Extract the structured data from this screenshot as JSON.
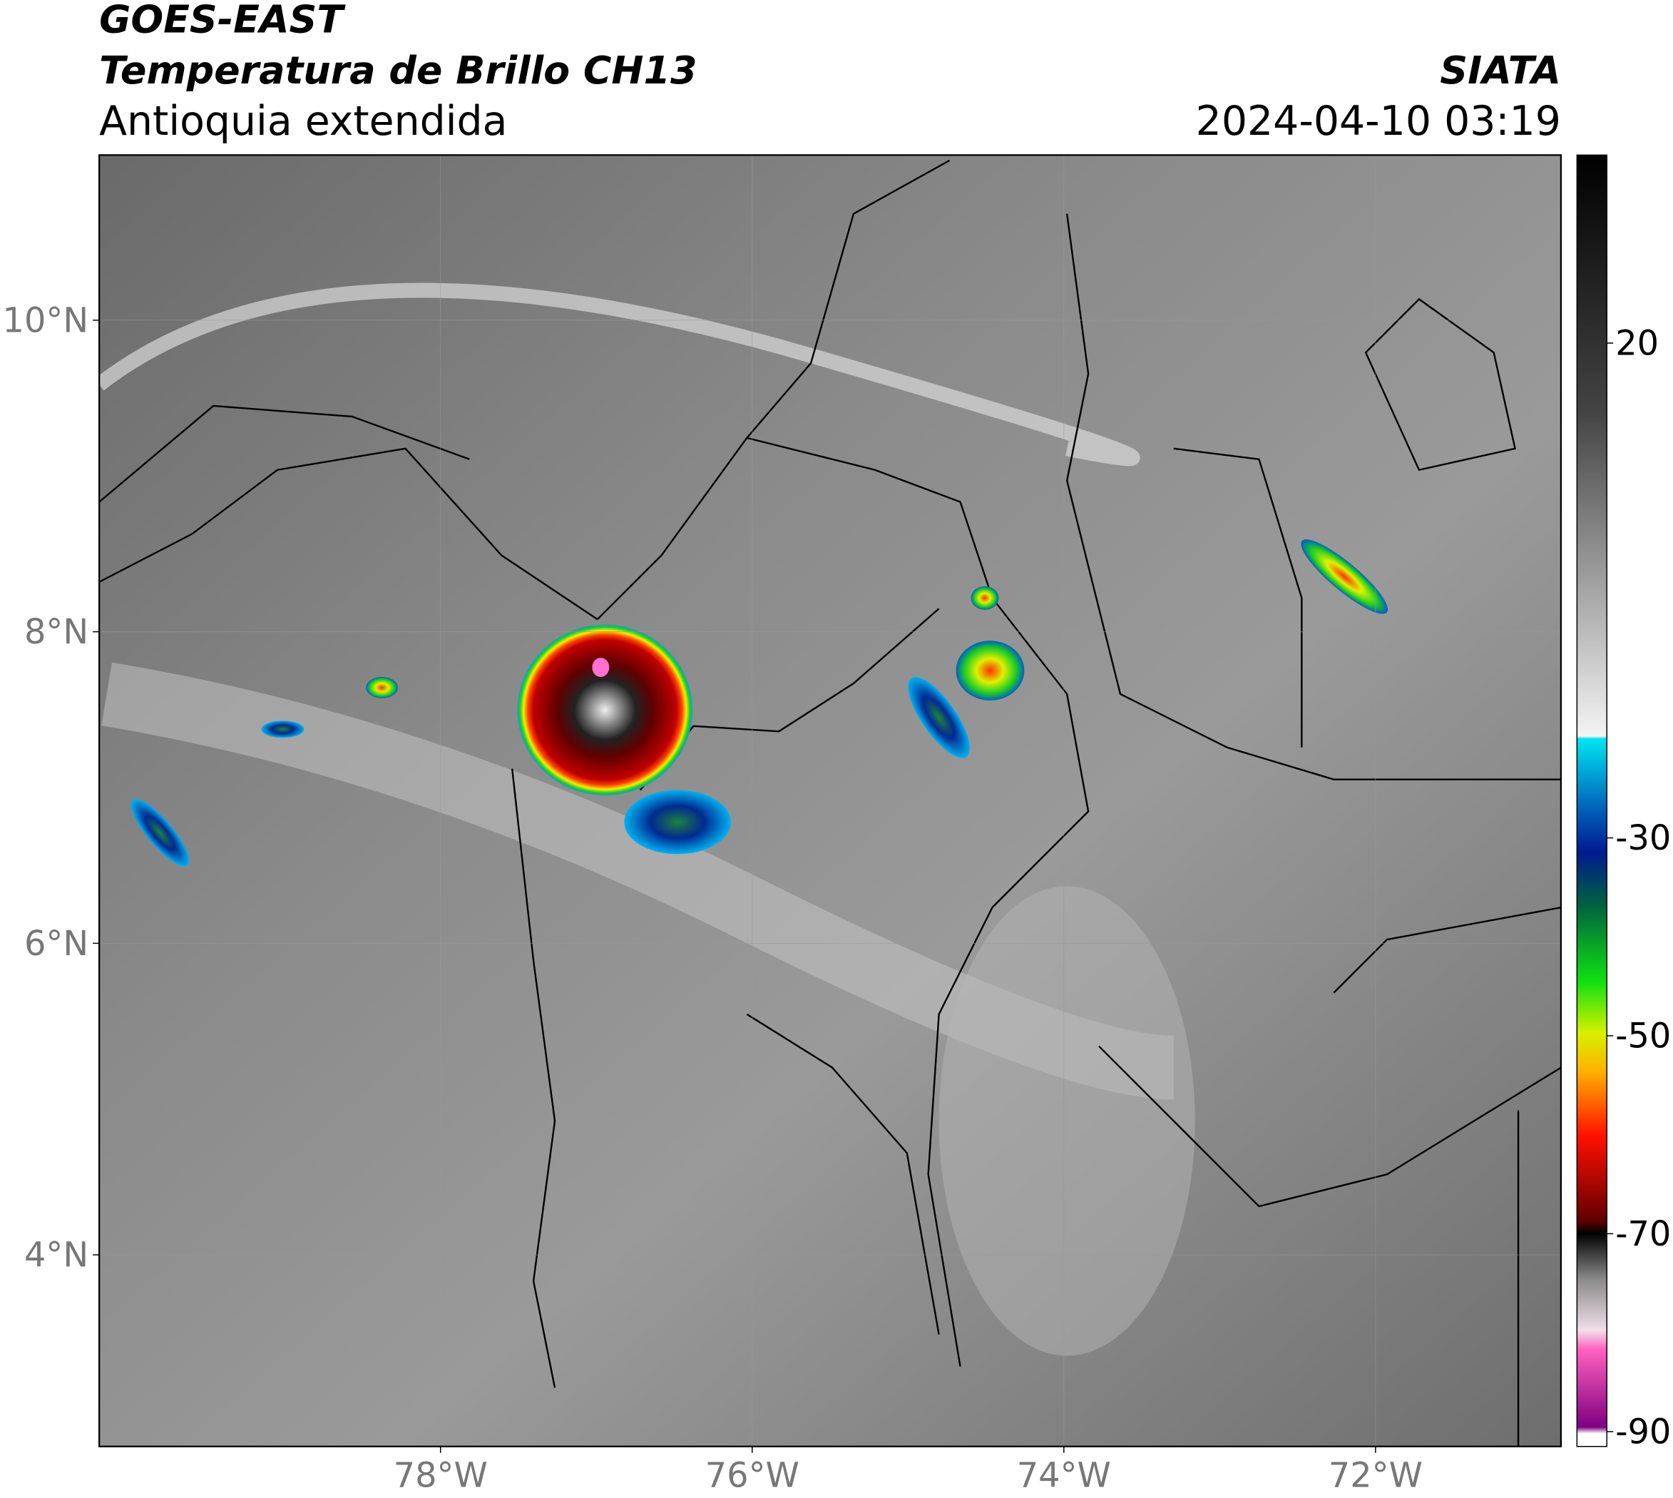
{
  "header": {
    "title": "GOES-EAST",
    "subtitle": "Temperatura de Brillo CH13",
    "region": "Antioquia extendida",
    "source": "SIATA",
    "timestamp": "2024-04-10 03:19"
  },
  "map": {
    "xlim": [
      -80.19,
      -70.81
    ],
    "ylim": [
      2.77,
      11.06
    ],
    "xticks": [
      {
        "value": -78,
        "label": "78°W"
      },
      {
        "value": -76,
        "label": "76°W"
      },
      {
        "value": -74,
        "label": "74°W"
      },
      {
        "value": -72,
        "label": "72°W"
      }
    ],
    "yticks": [
      {
        "value": 10,
        "label": "10°N"
      },
      {
        "value": 8,
        "label": "8°N"
      },
      {
        "value": 6,
        "label": "6°N"
      },
      {
        "value": 4,
        "label": "4°N"
      }
    ],
    "grid": true
  },
  "colorbar": {
    "clim": [
      -91.5,
      39
    ],
    "ticks": [
      20,
      -30,
      -50,
      -70,
      -90
    ]
  }
}
